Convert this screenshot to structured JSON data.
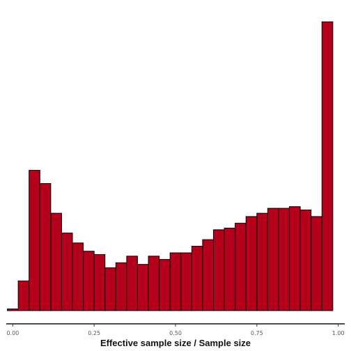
{
  "chart_data": {
    "type": "bar",
    "title": "",
    "xlabel": "Effective sample size / Sample size",
    "ylabel": "",
    "xlim": [
      -0.02,
      1.02
    ],
    "bin_width": 0.0333,
    "bin_starts": [
      -0.0167,
      0.0167,
      0.05,
      0.0833,
      0.1167,
      0.15,
      0.1833,
      0.2167,
      0.25,
      0.2833,
      0.3167,
      0.35,
      0.3833,
      0.4167,
      0.45,
      0.4833,
      0.5167,
      0.55,
      0.5833,
      0.6167,
      0.65,
      0.6833,
      0.7167,
      0.75,
      0.7833,
      0.8167,
      0.85,
      0.8833,
      0.9167,
      0.95
    ],
    "values": [
      1,
      18,
      85,
      77,
      59,
      47,
      41,
      36,
      34,
      26,
      29,
      33,
      28,
      33,
      31,
      35,
      35,
      39,
      43,
      49,
      50,
      53,
      57,
      59,
      62,
      62,
      63,
      61,
      57,
      175
    ],
    "ylim": [
      0,
      184
    ],
    "xticks": [
      0,
      0.25,
      0.5,
      0.75,
      1
    ],
    "xtick_labels": [
      "0.00",
      "0.25",
      "0.50",
      "0.75",
      "1.00"
    ],
    "grid": false,
    "bar_color": "#b5001c",
    "bar_stroke": "#000000"
  }
}
